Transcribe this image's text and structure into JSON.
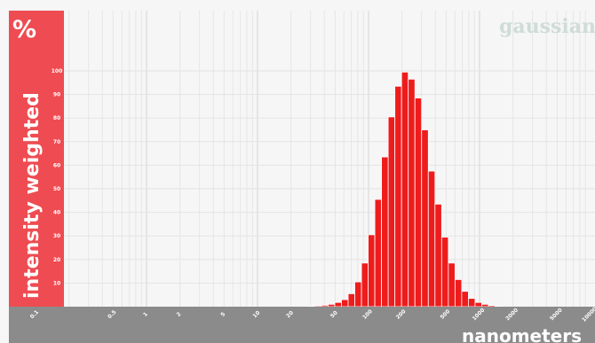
{
  "chart_data": {
    "type": "bar",
    "corner_label": "gaussian",
    "y_unit_label": "%",
    "ylabel": "intensity weighted",
    "xlabel": "nanometers",
    "x_scale": "log",
    "xlim": [
      0.1,
      10000
    ],
    "ylim": [
      0,
      100
    ],
    "y_ticks": [
      "10",
      "20",
      "30",
      "40",
      "50",
      "60",
      "70",
      "80",
      "90",
      "100"
    ],
    "x_ticks": [
      {
        "label": "0.1",
        "value": 0.1
      },
      {
        "label": "0.5",
        "value": 0.5
      },
      {
        "label": "1",
        "value": 1
      },
      {
        "label": "2",
        "value": 2
      },
      {
        "label": "5",
        "value": 5
      },
      {
        "label": "10",
        "value": 10
      },
      {
        "label": "20",
        "value": 20
      },
      {
        "label": "50",
        "value": 50
      },
      {
        "label": "100",
        "value": 100
      },
      {
        "label": "200",
        "value": 200
      },
      {
        "label": "500",
        "value": 500
      },
      {
        "label": "1000",
        "value": 1000
      },
      {
        "label": "2000",
        "value": 2000
      },
      {
        "label": "5000",
        "value": 5000
      },
      {
        "label": "10000",
        "value": 10000
      }
    ],
    "grid": true,
    "bar_color": "#ee1c1c",
    "band_color": "#ee4c52",
    "axis_band_color": "#8b8b8b",
    "series": [
      {
        "x": [
          30.6,
          35.1,
          40.3,
          46.3,
          53.2,
          61.1,
          70.2,
          80.6,
          92.6,
          106.3,
          122.1,
          140.3,
          161.1,
          185.1,
          212.6,
          244.2,
          280.5,
          322.2,
          370.1,
          425.1,
          488.3,
          560.9,
          644.3,
          740.0,
          850.0,
          976.4,
          1121.5,
          1288.2,
          1479.7
        ],
        "values": [
          0.2,
          0.4,
          0.6,
          1.0,
          1.8,
          3.0,
          5.5,
          10.5,
          18.5,
          30.5,
          45.5,
          63.5,
          80.5,
          93.5,
          99.5,
          96.5,
          88.5,
          75.0,
          57.5,
          43.5,
          29.5,
          18.5,
          11.5,
          6.5,
          3.5,
          1.8,
          1.0,
          0.5,
          0.2
        ]
      }
    ]
  }
}
